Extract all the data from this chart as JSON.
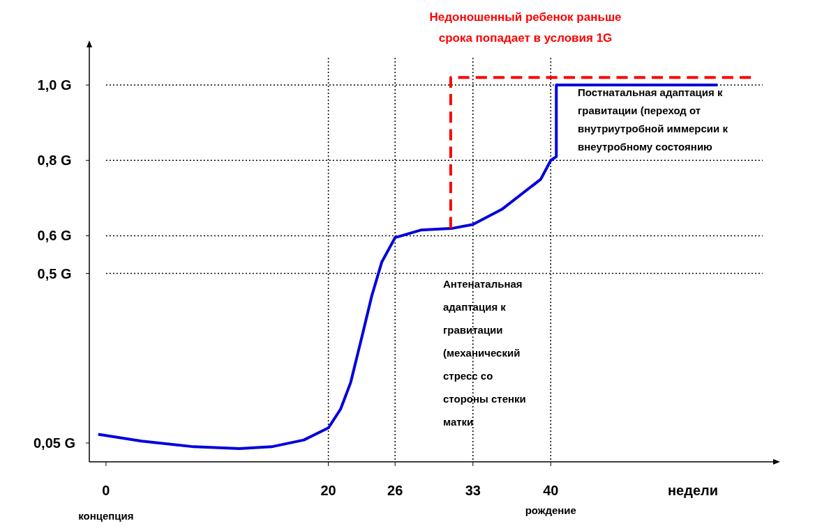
{
  "chart_data": {
    "type": "line",
    "xlabel": "недели",
    "xlim": [
      -1.5,
      60
    ],
    "ylim": [
      0,
      1.1
    ],
    "xticks": [
      0,
      20,
      26,
      33,
      40
    ],
    "yticks": [
      {
        "value": 0.05,
        "label": "0,05 G"
      },
      {
        "value": 0.5,
        "label": "0,5 G"
      },
      {
        "value": 0.6,
        "label": "0,6 G"
      },
      {
        "value": 0.8,
        "label": "0,8 G"
      },
      {
        "value": 1.0,
        "label": "1,0 G"
      }
    ],
    "series": [
      {
        "color": "#0000dd",
        "line_style": "solid",
        "x": [
          -0.7,
          3.2,
          7.9,
          12,
          14.9,
          17.8,
          20,
          21.1,
          22,
          23,
          23.9,
          24.8,
          26,
          28.3,
          31.2,
          33,
          35.6,
          39.1,
          40,
          40.5,
          40.5,
          55
        ],
        "values": [
          0.073,
          0.055,
          0.04,
          0.035,
          0.04,
          0.058,
          0.09,
          0.14,
          0.21,
          0.33,
          0.44,
          0.53,
          0.595,
          0.615,
          0.62,
          0.63,
          0.67,
          0.75,
          0.8,
          0.81,
          1.0,
          1.0
        ]
      },
      {
        "color": "#ff0000",
        "line_style": "dashed",
        "x": [
          31,
          31,
          58
        ],
        "values": [
          0.62,
          1.02,
          1.02
        ]
      }
    ],
    "ref_lines": [
      {
        "axis": "y",
        "value": 0.5,
        "line_style": "dotted"
      },
      {
        "axis": "y",
        "value": 0.6,
        "line_style": "dotted"
      },
      {
        "axis": "y",
        "value": 0.8,
        "line_style": "dotted"
      },
      {
        "axis": "y",
        "value": 1.0,
        "line_style": "dotted"
      },
      {
        "axis": "x",
        "value": 20,
        "line_style": "dotted"
      },
      {
        "axis": "x",
        "value": 26,
        "line_style": "dotted"
      },
      {
        "axis": "x",
        "value": 33,
        "line_style": "dotted"
      },
      {
        "axis": "x",
        "value": 40,
        "line_style": "dotted"
      }
    ],
    "annotations": [
      "Недоношенный ребенок раньше\nсрока попадает в условия 1G",
      "Постнатальная адаптация к\nгравитации (переход от\nвнутриутробной иммерсии к\nвнеутробному состоянию",
      "Антенатальная\nадаптация к\nгравитации\n(механический\nстресс со\nстороны стенки\nматки",
      "концепция",
      "рождение"
    ]
  }
}
